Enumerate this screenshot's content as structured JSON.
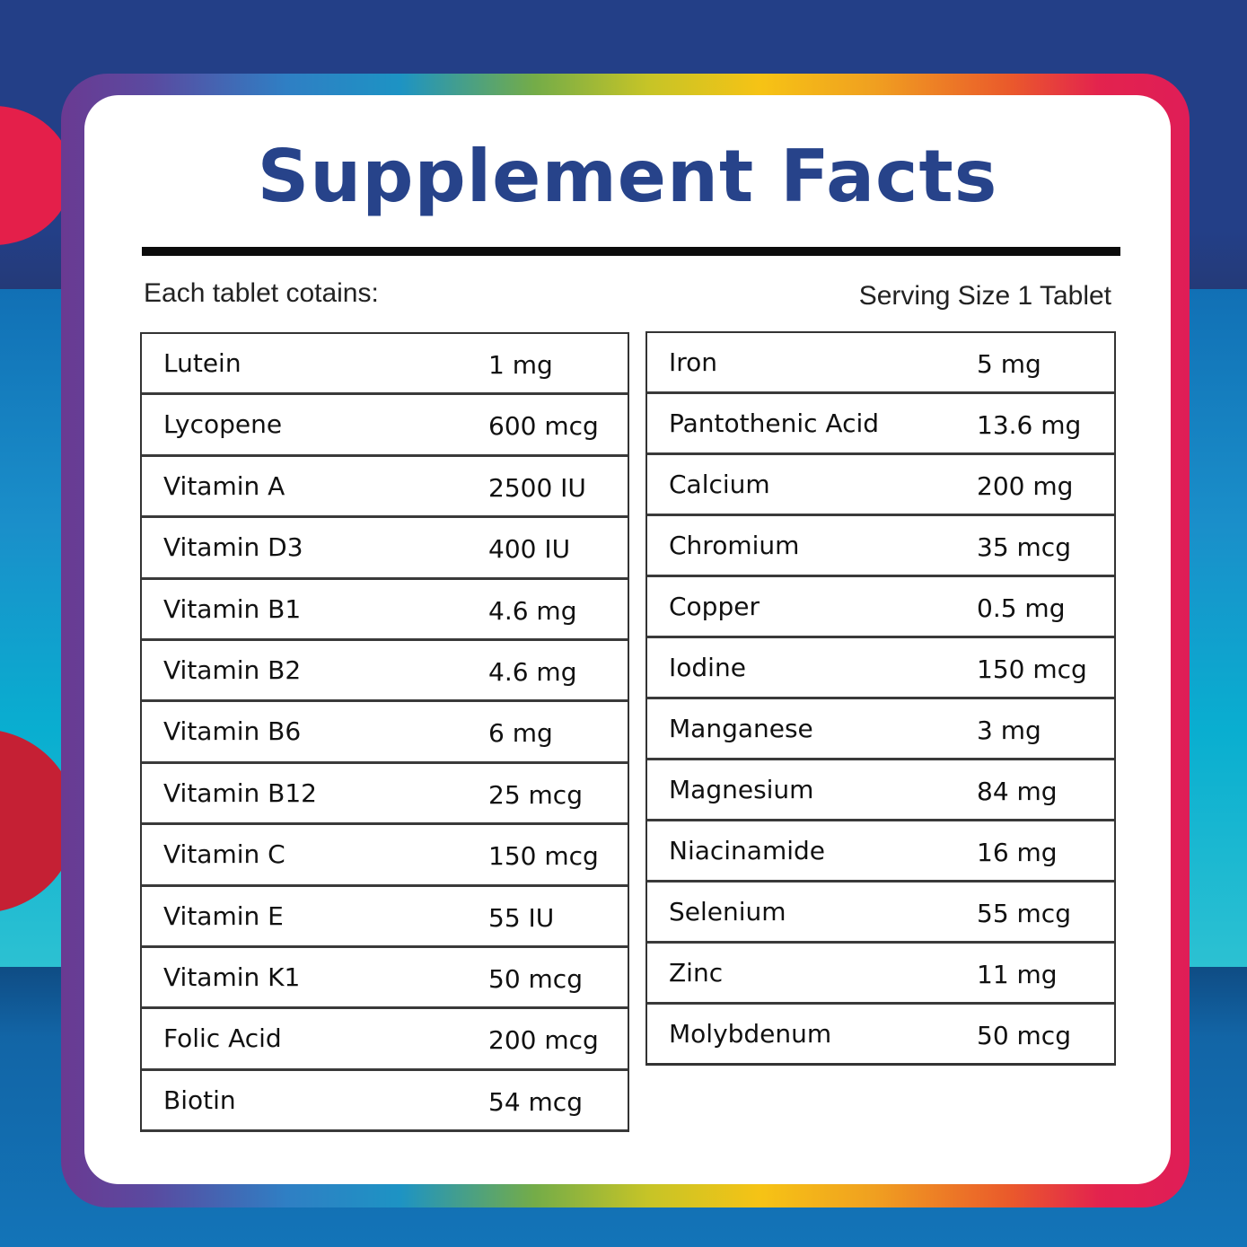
{
  "title": "Supplement Facts",
  "subheader": {
    "left": "Each tablet cotains:",
    "right": "Serving Size 1 Tablet"
  },
  "colors": {
    "title": "#27438a",
    "background_top": "#233f87",
    "background_mid": "#1a8fca",
    "border_gradient_start": "#6a3a92",
    "border_gradient_end": "#df1d57",
    "accent_red": "#e41f4a"
  },
  "left_table": [
    {
      "name": "Lutein",
      "amount": "1 mg"
    },
    {
      "name": "Lycopene",
      "amount": "600 mcg"
    },
    {
      "name": "Vitamin A",
      "amount": "2500 IU"
    },
    {
      "name": "Vitamin D3",
      "amount": "400 IU"
    },
    {
      "name": "Vitamin B1",
      "amount": "4.6 mg"
    },
    {
      "name": "Vitamin B2",
      "amount": "4.6 mg"
    },
    {
      "name": "Vitamin B6",
      "amount": "6 mg"
    },
    {
      "name": "Vitamin B12",
      "amount": "25 mcg"
    },
    {
      "name": "Vitamin C",
      "amount": "150 mcg"
    },
    {
      "name": "Vitamin E",
      "amount": "55 IU"
    },
    {
      "name": "Vitamin K1",
      "amount": "50 mcg"
    },
    {
      "name": "Folic Acid",
      "amount": "200 mcg"
    },
    {
      "name": "Biotin",
      "amount": "54 mcg"
    }
  ],
  "right_table": [
    {
      "name": "Iron",
      "amount": "5 mg"
    },
    {
      "name": "Pantothenic Acid",
      "amount": "13.6 mg"
    },
    {
      "name": "Calcium",
      "amount": "200 mg"
    },
    {
      "name": "Chromium",
      "amount": "35 mcg"
    },
    {
      "name": "Copper",
      "amount": "0.5 mg"
    },
    {
      "name": "Iodine",
      "amount": "150 mcg"
    },
    {
      "name": "Manganese",
      "amount": "3 mg"
    },
    {
      "name": "Magnesium",
      "amount": "84 mg"
    },
    {
      "name": "Niacinamide",
      "amount": "16 mg"
    },
    {
      "name": "Selenium",
      "amount": "55 mcg"
    },
    {
      "name": "Zinc",
      "amount": "11 mg"
    },
    {
      "name": "Molybdenum",
      "amount": "50 mcg"
    }
  ]
}
